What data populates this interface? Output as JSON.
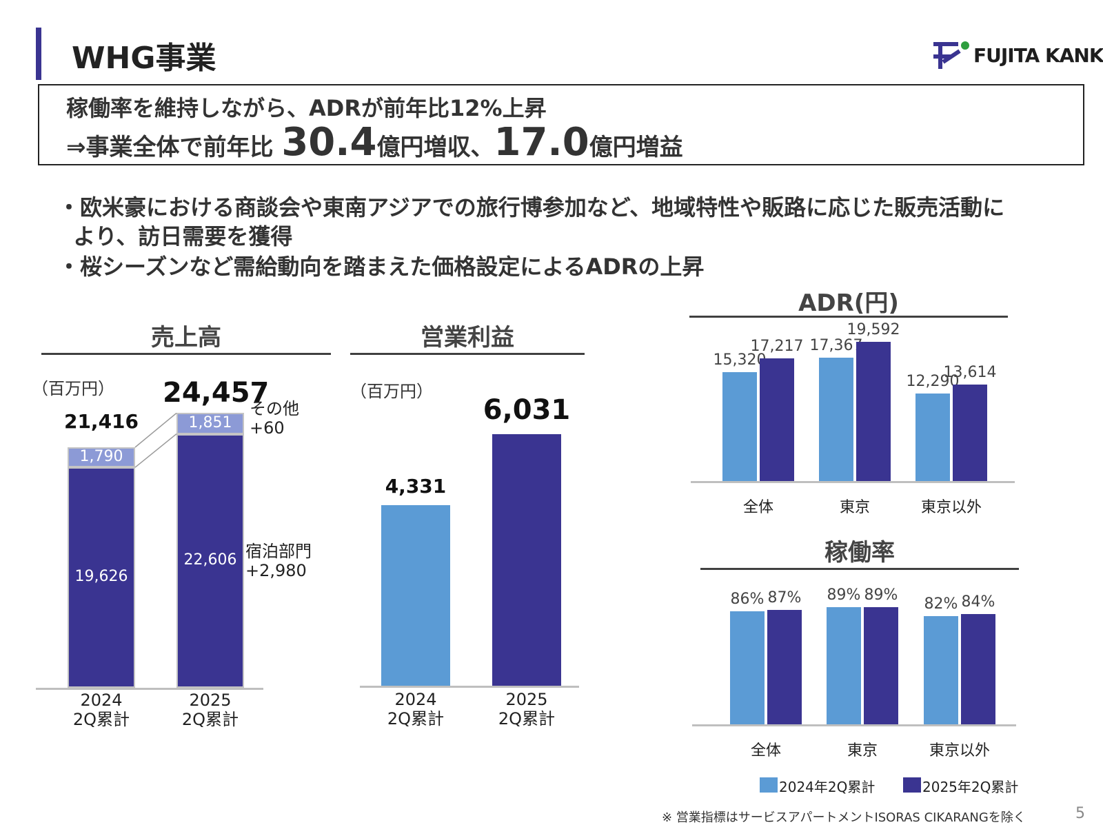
{
  "header": {
    "title": "WHG事業",
    "logo_text": "FUJITA KANKO"
  },
  "summary": {
    "line1": "稼働率を維持しながら、ADRが前年比12%上昇",
    "line2_prefix": "⇒事業全体で前年比 ",
    "revenue_increase": "30.4",
    "line2_mid": "億円増収、",
    "profit_increase": "17.0",
    "line2_suffix": "億円増益"
  },
  "bullets": [
    "・欧米豪における商談会や東南アジアでの旅行博参加など、地域特性や販路に応じた販売活動に",
    "  より、訪日需要を獲得",
    "・桜シーズンなど需給動向を踏まえた価格設定によるADRの上昇"
  ],
  "colors": {
    "accent": "#3a3491",
    "bar_2024": "#5b9bd5",
    "bar_2025": "#3a3491",
    "bar_other": "#8c9ad6",
    "bar_outline": "#c4c4c4"
  },
  "chart_data": [
    {
      "type": "bar",
      "stacked": true,
      "title": "売上高",
      "unit": "（百万円）",
      "categories": [
        "2024\n2Q累計",
        "2025\n2Q累計"
      ],
      "category_lines": [
        [
          "2024",
          "2Q累計"
        ],
        [
          "2025",
          "2Q累計"
        ]
      ],
      "series": [
        {
          "name": "宿泊部門",
          "values": [
            19626,
            22606
          ],
          "labels": [
            "19,626",
            "22,606"
          ]
        },
        {
          "name": "その他",
          "values": [
            1790,
            1851
          ],
          "labels": [
            "1,790",
            "1,851"
          ]
        }
      ],
      "totals": [
        21416,
        24457
      ],
      "total_labels": [
        "21,416",
        "24,457"
      ],
      "annotations": [
        {
          "label": "その他",
          "value": "+60"
        },
        {
          "label": "宿泊部門",
          "value": "+2,980"
        }
      ],
      "ylim": [
        0,
        27000
      ]
    },
    {
      "type": "bar",
      "title": "営業利益",
      "unit": "（百万円）",
      "categories": [
        "2024\n2Q累計",
        "2025\n2Q累計"
      ],
      "category_lines": [
        [
          "2024",
          "2Q累計"
        ],
        [
          "2025",
          "2Q累計"
        ]
      ],
      "values": [
        4331,
        6031
      ],
      "value_labels": [
        "4,331",
        "6,031"
      ],
      "ylim": [
        0,
        8200
      ]
    },
    {
      "type": "bar",
      "title": "ADR(円)",
      "categories": [
        "全体",
        "東京",
        "東京以外"
      ],
      "series": [
        {
          "name": "2024年2Q累計",
          "values": [
            15320,
            17367,
            12290
          ],
          "labels": [
            "15,320",
            "17,367",
            "12,290"
          ]
        },
        {
          "name": "2025年2Q累計",
          "values": [
            17217,
            19592,
            13614
          ],
          "labels": [
            "17,217",
            "19,592",
            "13,614"
          ]
        }
      ],
      "ylim": [
        0,
        22000
      ]
    },
    {
      "type": "bar",
      "title": "稼働率",
      "categories": [
        "全体",
        "東京",
        "東京以外"
      ],
      "series": [
        {
          "name": "2024年2Q累計",
          "values": [
            86,
            89,
            82
          ],
          "labels": [
            "86%",
            "89%",
            "82%"
          ]
        },
        {
          "name": "2025年2Q累計",
          "values": [
            87,
            89,
            84
          ],
          "labels": [
            "87%",
            "89%",
            "84%"
          ]
        }
      ],
      "ylim": [
        0,
        100
      ],
      "legend": [
        "2024年2Q累計",
        "2025年2Q累計"
      ]
    }
  ],
  "footnote": "※ 営業指標はサービスアパートメントISORAS CIKARANGを除く",
  "page_number": "5"
}
